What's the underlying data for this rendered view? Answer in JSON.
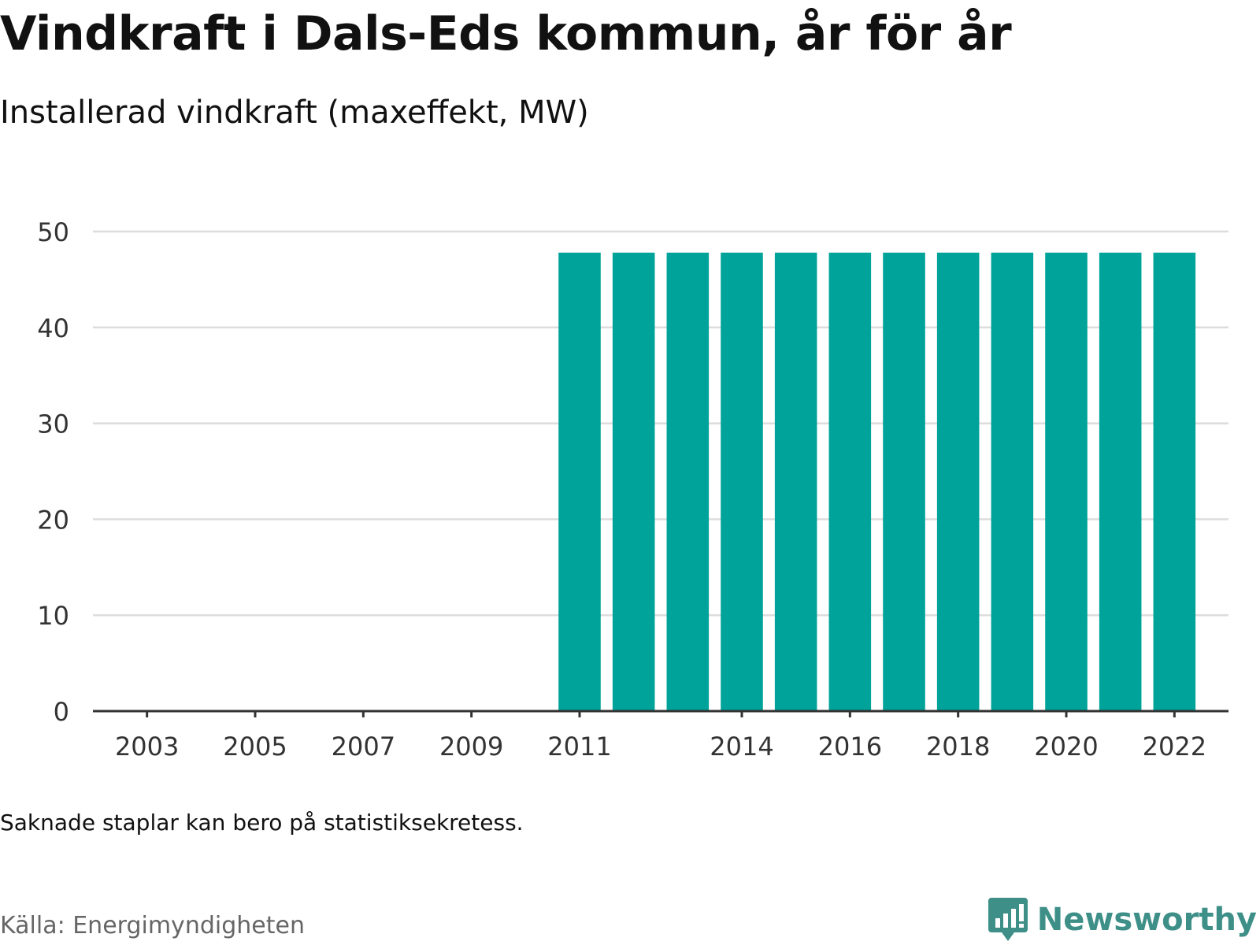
{
  "header": {
    "title": "Vindkraft i Dals-Eds kommun, år för år",
    "subtitle": "Installerad vindkraft (maxeffekt, MW)"
  },
  "footer": {
    "note": "Saknade staplar kan bero på statistiksekretess.",
    "source": "Källa: Energimyndigheten",
    "brand_name": "Newsworthy",
    "brand_icon": "bar-chart-speech-bubble-icon"
  },
  "colors": {
    "bar": "#00a39a",
    "grid": "#dddddd",
    "axis": "#333333",
    "tick_text": "#333333",
    "brand": "#3d8f88"
  },
  "chart_data": {
    "type": "bar",
    "title": "Vindkraft i Dals-Eds kommun, år för år",
    "subtitle": "Installerad vindkraft (maxeffekt, MW)",
    "xlabel": "",
    "ylabel": "",
    "x_range": [
      2002,
      2023
    ],
    "categories": [
      "2011",
      "2012",
      "2013",
      "2014",
      "2015",
      "2016",
      "2017",
      "2018",
      "2019",
      "2020",
      "2021",
      "2022"
    ],
    "values": [
      47.8,
      47.8,
      47.8,
      47.8,
      47.8,
      47.8,
      47.8,
      47.8,
      47.8,
      47.8,
      47.8,
      47.8
    ],
    "x_tick_labels": [
      "2003",
      "2005",
      "2007",
      "2009",
      "2011",
      "2014",
      "2016",
      "2018",
      "2020",
      "2022"
    ],
    "y_ticks": [
      0,
      10,
      20,
      30,
      40,
      50
    ],
    "ylim": [
      0,
      50
    ],
    "grid": true,
    "legend": "none"
  }
}
